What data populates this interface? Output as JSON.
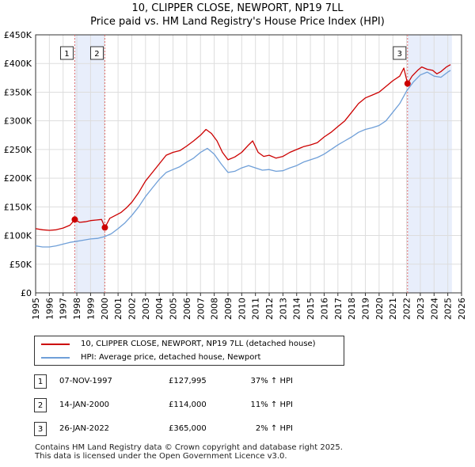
{
  "title_line1": "10, CLIPPER CLOSE, NEWPORT, NP19 7LL",
  "title_line2": "Price paid vs. HM Land Registry's House Price Index (HPI)",
  "colors": {
    "price_line": "#cc0000",
    "hpi_line": "#6f9fd8",
    "shade": "#e8eefb",
    "grid": "#dddddd",
    "marker_line": "#e07070"
  },
  "chart_data": {
    "type": "line",
    "title": "Price paid vs. HM Land Registry's House Price Index (HPI)",
    "xlim": [
      1995,
      2026
    ],
    "ylim": [
      0,
      450000
    ],
    "x_ticks": [
      "1995",
      "1996",
      "1997",
      "1998",
      "1999",
      "2000",
      "2001",
      "2002",
      "2003",
      "2004",
      "2005",
      "2006",
      "2007",
      "2008",
      "2009",
      "2010",
      "2011",
      "2012",
      "2013",
      "2014",
      "2015",
      "2016",
      "2017",
      "2018",
      "2019",
      "2020",
      "2021",
      "2022",
      "2023",
      "2024",
      "2025",
      "2026"
    ],
    "y_ticks": [
      {
        "value": 0,
        "label": "£0"
      },
      {
        "value": 50000,
        "label": "£50K"
      },
      {
        "value": 100000,
        "label": "£100K"
      },
      {
        "value": 150000,
        "label": "£150K"
      },
      {
        "value": 200000,
        "label": "£200K"
      },
      {
        "value": 250000,
        "label": "£250K"
      },
      {
        "value": 300000,
        "label": "£300K"
      },
      {
        "value": 350000,
        "label": "£350K"
      },
      {
        "value": 400000,
        "label": "£400K"
      },
      {
        "value": 450000,
        "label": "£450K"
      }
    ],
    "shaded_regions": [
      [
        1997.85,
        2000.04
      ],
      [
        2022.07,
        2025.3
      ]
    ],
    "series": [
      {
        "name": "10, CLIPPER CLOSE, NEWPORT, NP19 7LL (detached house)",
        "color": "#cc0000",
        "points": [
          [
            1995.0,
            112000
          ],
          [
            1995.5,
            110000
          ],
          [
            1996.0,
            109000
          ],
          [
            1996.5,
            110000
          ],
          [
            1997.0,
            113000
          ],
          [
            1997.5,
            118000
          ],
          [
            1997.85,
            127995
          ],
          [
            1998.2,
            123000
          ],
          [
            1998.6,
            124000
          ],
          [
            1999.0,
            126000
          ],
          [
            1999.4,
            127000
          ],
          [
            1999.8,
            128000
          ],
          [
            2000.04,
            114000
          ],
          [
            2000.4,
            130000
          ],
          [
            2000.8,
            135000
          ],
          [
            2001.2,
            140000
          ],
          [
            2001.6,
            148000
          ],
          [
            2002.0,
            158000
          ],
          [
            2002.5,
            175000
          ],
          [
            2003.0,
            195000
          ],
          [
            2003.5,
            210000
          ],
          [
            2004.0,
            225000
          ],
          [
            2004.5,
            240000
          ],
          [
            2005.0,
            245000
          ],
          [
            2005.5,
            248000
          ],
          [
            2006.0,
            256000
          ],
          [
            2006.5,
            265000
          ],
          [
            2007.0,
            275000
          ],
          [
            2007.4,
            285000
          ],
          [
            2007.8,
            278000
          ],
          [
            2008.2,
            265000
          ],
          [
            2008.6,
            245000
          ],
          [
            2009.0,
            232000
          ],
          [
            2009.5,
            237000
          ],
          [
            2010.0,
            245000
          ],
          [
            2010.5,
            258000
          ],
          [
            2010.8,
            265000
          ],
          [
            2011.2,
            245000
          ],
          [
            2011.6,
            238000
          ],
          [
            2012.0,
            240000
          ],
          [
            2012.5,
            235000
          ],
          [
            2013.0,
            238000
          ],
          [
            2013.5,
            245000
          ],
          [
            2014.0,
            250000
          ],
          [
            2014.5,
            255000
          ],
          [
            2015.0,
            258000
          ],
          [
            2015.5,
            262000
          ],
          [
            2016.0,
            272000
          ],
          [
            2016.5,
            280000
          ],
          [
            2017.0,
            290000
          ],
          [
            2017.5,
            300000
          ],
          [
            2018.0,
            315000
          ],
          [
            2018.5,
            330000
          ],
          [
            2019.0,
            340000
          ],
          [
            2019.5,
            345000
          ],
          [
            2020.0,
            350000
          ],
          [
            2020.5,
            360000
          ],
          [
            2021.0,
            370000
          ],
          [
            2021.5,
            378000
          ],
          [
            2021.8,
            392000
          ],
          [
            2022.07,
            365000
          ],
          [
            2022.4,
            378000
          ],
          [
            2022.8,
            388000
          ],
          [
            2023.1,
            394000
          ],
          [
            2023.5,
            390000
          ],
          [
            2023.9,
            388000
          ],
          [
            2024.2,
            382000
          ],
          [
            2024.5,
            386000
          ],
          [
            2024.9,
            394000
          ],
          [
            2025.2,
            398000
          ]
        ]
      },
      {
        "name": "HPI: Average price, detached house, Newport",
        "color": "#6f9fd8",
        "points": [
          [
            1995.0,
            82000
          ],
          [
            1995.5,
            80000
          ],
          [
            1996.0,
            80000
          ],
          [
            1996.5,
            82000
          ],
          [
            1997.0,
            85000
          ],
          [
            1997.5,
            88000
          ],
          [
            1998.0,
            90000
          ],
          [
            1998.5,
            92000
          ],
          [
            1999.0,
            94000
          ],
          [
            1999.5,
            95000
          ],
          [
            2000.0,
            98000
          ],
          [
            2000.5,
            103000
          ],
          [
            2001.0,
            112000
          ],
          [
            2001.5,
            122000
          ],
          [
            2002.0,
            135000
          ],
          [
            2002.5,
            150000
          ],
          [
            2003.0,
            168000
          ],
          [
            2003.5,
            183000
          ],
          [
            2004.0,
            198000
          ],
          [
            2004.5,
            210000
          ],
          [
            2005.0,
            215000
          ],
          [
            2005.5,
            220000
          ],
          [
            2006.0,
            228000
          ],
          [
            2006.5,
            235000
          ],
          [
            2007.0,
            245000
          ],
          [
            2007.5,
            252000
          ],
          [
            2008.0,
            242000
          ],
          [
            2008.5,
            225000
          ],
          [
            2009.0,
            210000
          ],
          [
            2009.5,
            212000
          ],
          [
            2010.0,
            218000
          ],
          [
            2010.5,
            222000
          ],
          [
            2011.0,
            218000
          ],
          [
            2011.5,
            214000
          ],
          [
            2012.0,
            215000
          ],
          [
            2012.5,
            212000
          ],
          [
            2013.0,
            213000
          ],
          [
            2013.5,
            218000
          ],
          [
            2014.0,
            222000
          ],
          [
            2014.5,
            228000
          ],
          [
            2015.0,
            232000
          ],
          [
            2015.5,
            236000
          ],
          [
            2016.0,
            242000
          ],
          [
            2016.5,
            250000
          ],
          [
            2017.0,
            258000
          ],
          [
            2017.5,
            265000
          ],
          [
            2018.0,
            272000
          ],
          [
            2018.5,
            280000
          ],
          [
            2019.0,
            285000
          ],
          [
            2019.5,
            288000
          ],
          [
            2020.0,
            292000
          ],
          [
            2020.5,
            300000
          ],
          [
            2021.0,
            315000
          ],
          [
            2021.5,
            330000
          ],
          [
            2022.0,
            352000
          ],
          [
            2022.5,
            368000
          ],
          [
            2023.0,
            380000
          ],
          [
            2023.5,
            385000
          ],
          [
            2024.0,
            378000
          ],
          [
            2024.5,
            376000
          ],
          [
            2025.0,
            385000
          ],
          [
            2025.2,
            388000
          ]
        ]
      }
    ],
    "sales": [
      {
        "label": "1",
        "year": 1997.85,
        "price": 127995
      },
      {
        "label": "2",
        "year": 2000.04,
        "price": 114000
      },
      {
        "label": "3",
        "year": 2022.07,
        "price": 365000
      }
    ]
  },
  "legend": {
    "price_label": "10, CLIPPER CLOSE, NEWPORT, NP19 7LL (detached house)",
    "hpi_label": "HPI: Average price, detached house, Newport"
  },
  "transactions": [
    {
      "num": "1",
      "date": "07-NOV-1997",
      "price": "£127,995",
      "hpi": "37% ↑ HPI"
    },
    {
      "num": "2",
      "date": "14-JAN-2000",
      "price": "£114,000",
      "hpi": "11% ↑ HPI"
    },
    {
      "num": "3",
      "date": "26-JAN-2022",
      "price": "£365,000",
      "hpi": "2% ↑ HPI"
    }
  ],
  "footer_line1": "Contains HM Land Registry data © Crown copyright and database right 2025.",
  "footer_line2": "This data is licensed under the Open Government Licence v3.0."
}
